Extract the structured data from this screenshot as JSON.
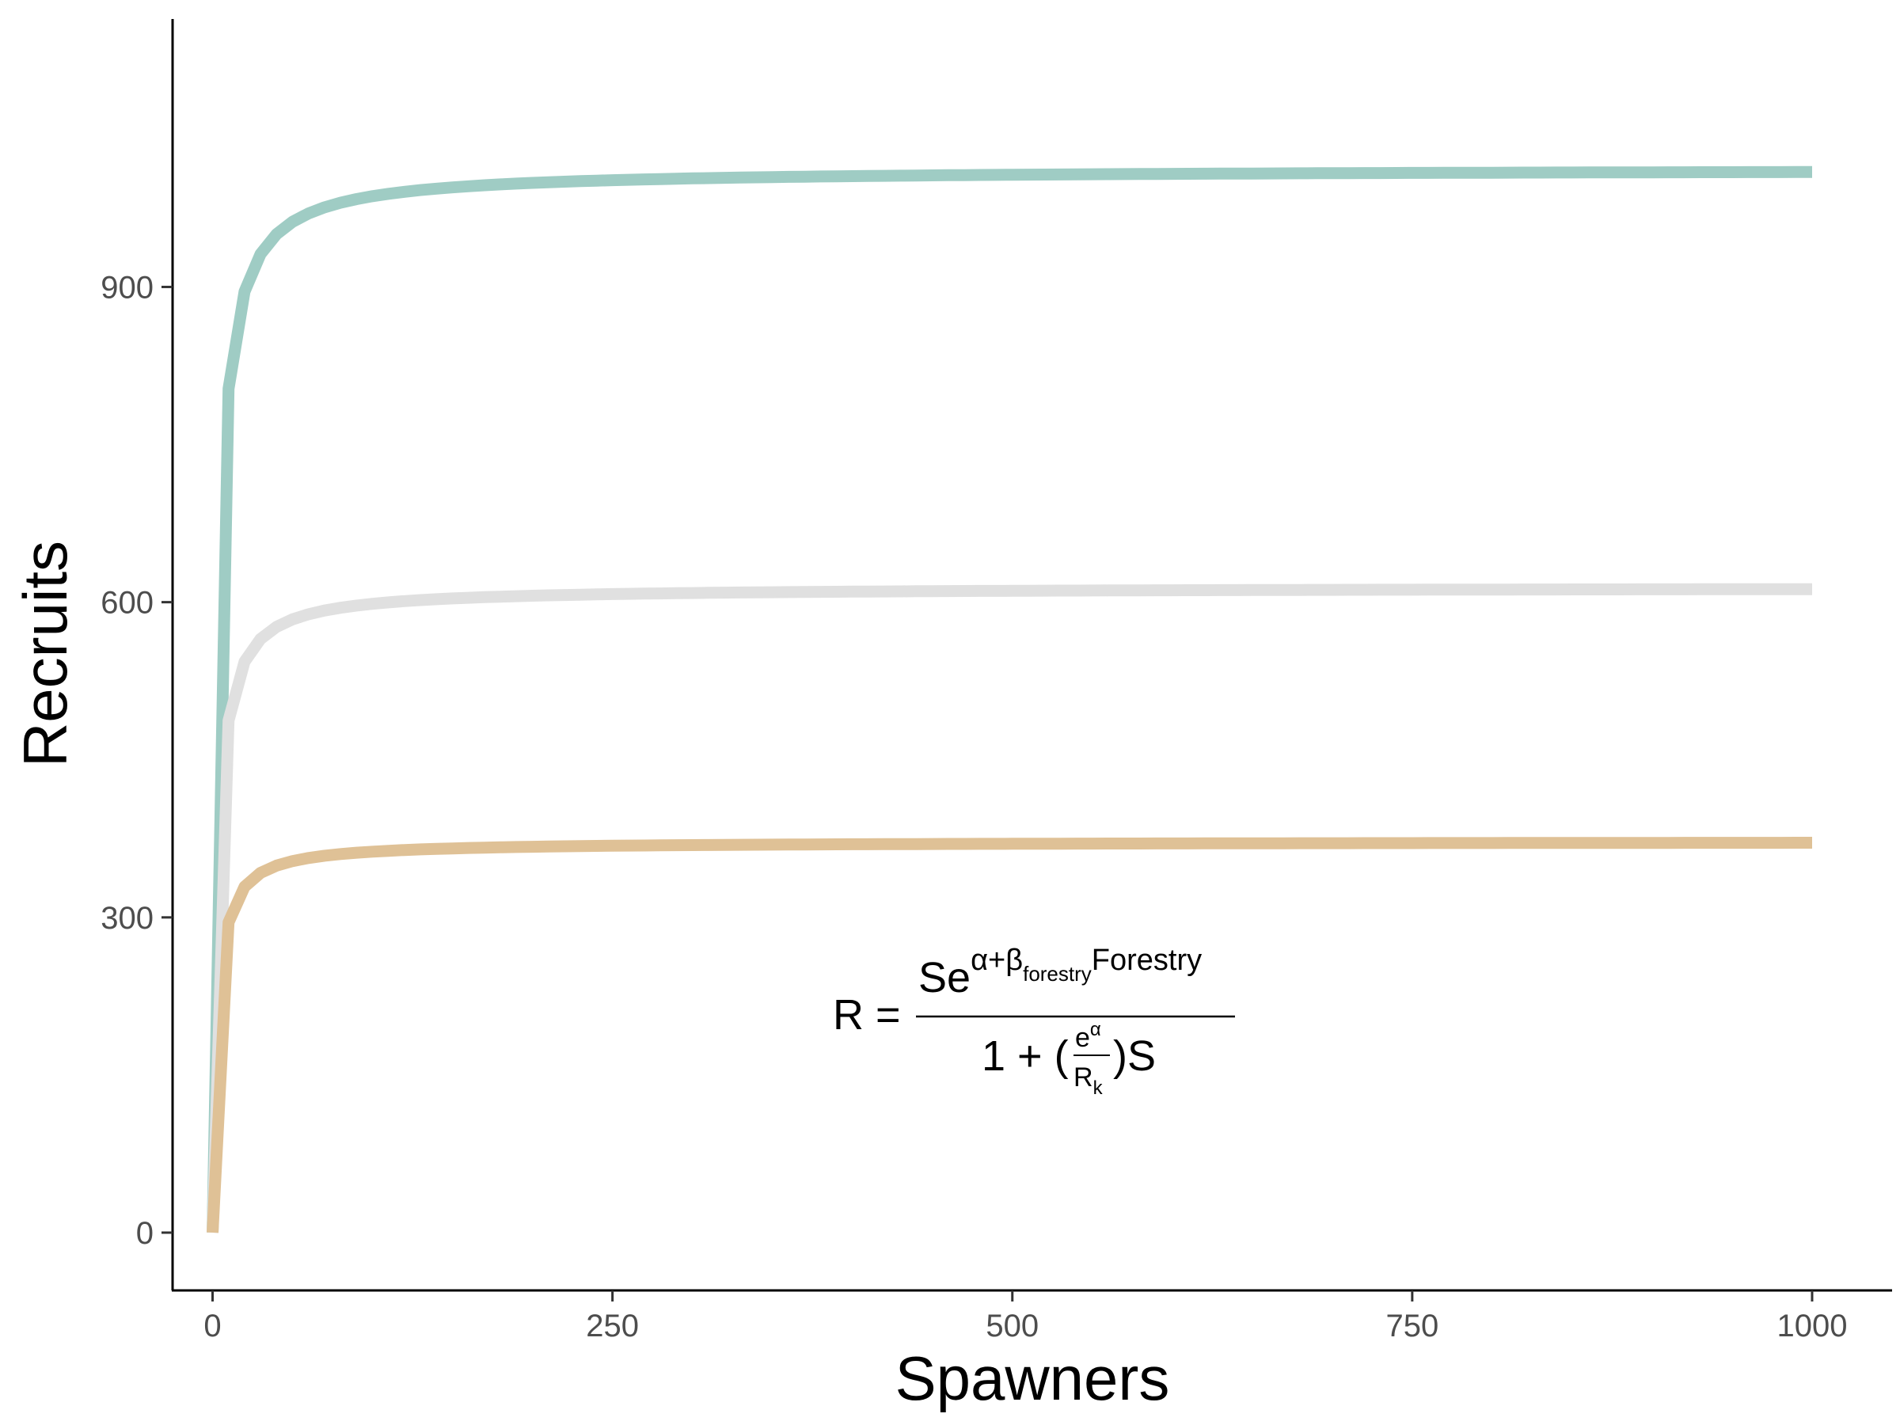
{
  "chart_data": {
    "type": "line",
    "title": "",
    "xlabel": "Spawners",
    "ylabel": "Recruits",
    "xlim": [
      -25,
      1050
    ],
    "ylim": [
      -55,
      1155
    ],
    "xticks": [
      0,
      250,
      500,
      750,
      1000
    ],
    "yticks": [
      0,
      300,
      600,
      900
    ],
    "grid": false,
    "legend": "none",
    "model": "beverton-holt",
    "series": [
      {
        "color": "#9fccc4",
        "asymptote": 1012,
        "half_saturation": 2.6
      },
      {
        "color": "#e0e0e0",
        "asymptote": 614,
        "half_saturation": 2.6
      },
      {
        "color": "#dfc196",
        "asymptote": 372,
        "half_saturation": 2.6
      }
    ],
    "equation": {
      "lhs": "R =",
      "num_base": "Se",
      "num_sup_a": "α+β",
      "num_sub": "forestry",
      "num_sup_b": "Forestry",
      "den_one": "1 + (",
      "den_frac_num": "e",
      "den_frac_num_sup": "α",
      "den_frac_den": "R",
      "den_frac_den_sub": "k",
      "den_close": ")S"
    }
  }
}
